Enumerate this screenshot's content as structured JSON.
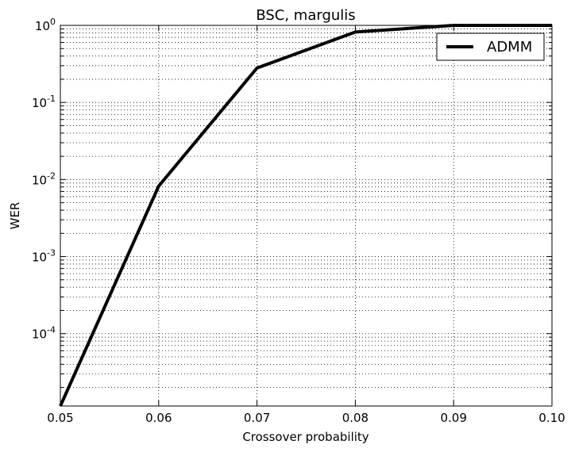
{
  "chart_data": {
    "type": "line",
    "title": "BSC, margulis",
    "xlabel": "Crossover probability",
    "ylabel": "WER",
    "xlim": [
      0.05,
      0.1
    ],
    "ylim": [
      1.15e-05,
      1
    ],
    "yscale": "log",
    "grid": true,
    "legend_position": "top-right",
    "x_ticks": [
      "0.05",
      "0.06",
      "0.07",
      "0.08",
      "0.09",
      "0.10"
    ],
    "y_ticks": [
      {
        "base": "10",
        "exp": "0"
      },
      {
        "base": "10",
        "exp": "-1"
      },
      {
        "base": "10",
        "exp": "-2"
      },
      {
        "base": "10",
        "exp": "-3"
      },
      {
        "base": "10",
        "exp": "-4"
      }
    ],
    "series": [
      {
        "name": "ADMM",
        "color": "#000000",
        "x": [
          0.05,
          0.06,
          0.07,
          0.08,
          0.09,
          0.1
        ],
        "y": [
          1.15e-05,
          0.0082,
          0.28,
          0.82,
          1.0,
          1.0
        ]
      }
    ]
  }
}
